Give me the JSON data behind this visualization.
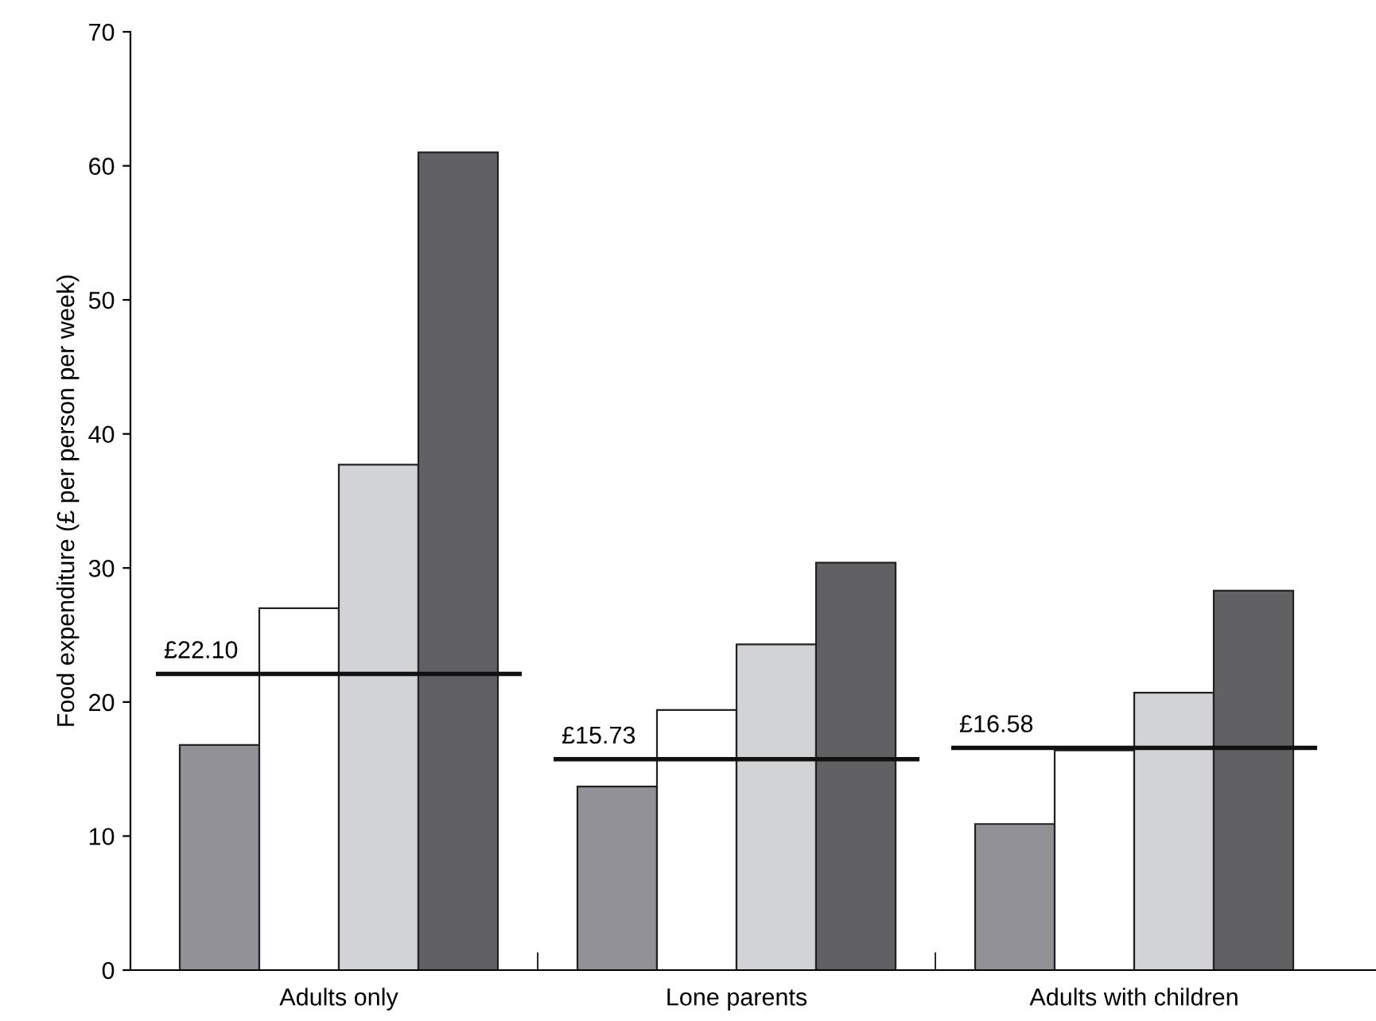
{
  "chart_data": {
    "type": "bar",
    "ylabel": "Food expenditure (£ per person per week)",
    "categories": [
      "Adults only",
      "Lone parents",
      "Adults with children"
    ],
    "series": [
      {
        "color": "#929296",
        "values": [
          16.8,
          13.7,
          10.9
        ]
      },
      {
        "color": "#ffffff",
        "values": [
          27.0,
          19.4,
          16.4
        ]
      },
      {
        "color": "#d2d3d5",
        "values": [
          37.7,
          24.3,
          20.7
        ]
      },
      {
        "color": "#616163",
        "values": [
          61.0,
          30.4,
          28.3
        ]
      }
    ],
    "ref_lines": [
      {
        "axis": "y",
        "value": 22.1,
        "label": "£22.10",
        "color": "#111111"
      },
      {
        "axis": "y",
        "value": 15.73,
        "label": "£15.73",
        "color": "#111111"
      },
      {
        "axis": "y",
        "value": 16.58,
        "label": "£16.58",
        "color": "#111111"
      }
    ],
    "ylim": [
      0,
      70
    ],
    "yticks": [
      0,
      10,
      20,
      30,
      40,
      50,
      60,
      70
    ],
    "grid": false,
    "legend": false
  }
}
